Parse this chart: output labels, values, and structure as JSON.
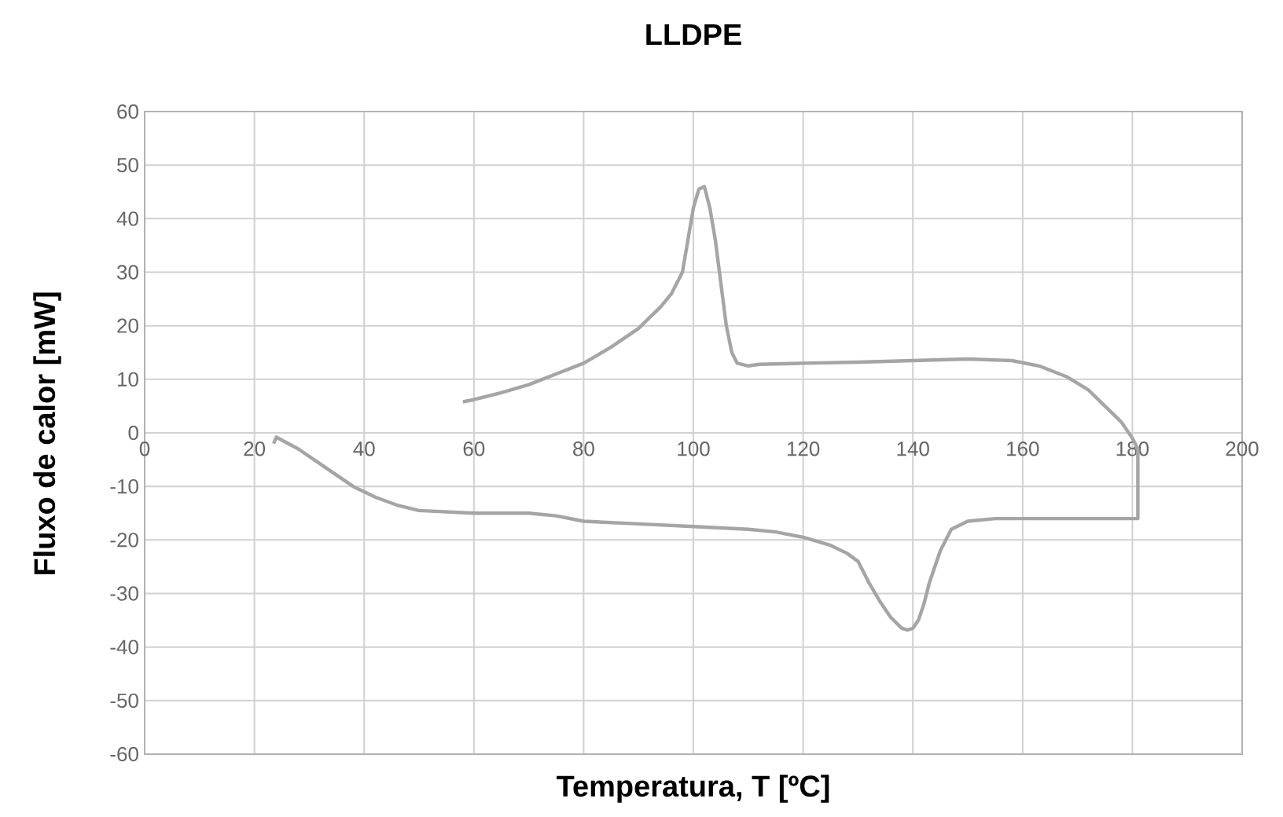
{
  "chart_data": {
    "type": "line",
    "title": "LLDPE",
    "xlabel": "Temperatura, T [ºC]",
    "ylabel": "Fluxo de calor [mW]",
    "xlim": [
      0,
      200
    ],
    "ylim": [
      -60,
      60
    ],
    "xticks": [
      0,
      20,
      40,
      60,
      80,
      100,
      120,
      140,
      160,
      180,
      200
    ],
    "yticks": [
      -60,
      -50,
      -40,
      -30,
      -20,
      -10,
      0,
      10,
      20,
      30,
      40,
      50,
      60
    ],
    "grid": true,
    "marker": "none",
    "line_style": "solid",
    "series": [
      {
        "color": "#a5a5a5",
        "x": [
          23.5,
          24,
          28,
          33,
          38,
          42,
          46,
          50,
          60,
          70,
          75,
          80,
          90,
          100,
          110,
          115,
          120,
          125,
          128,
          130,
          132,
          134,
          136,
          138,
          139,
          140,
          141,
          142,
          143,
          145,
          147,
          150,
          155,
          160,
          170,
          181,
          181,
          180,
          178,
          175,
          172,
          168,
          163,
          158,
          150,
          140,
          130,
          120,
          112,
          110,
          108,
          107,
          106,
          105,
          104,
          103,
          102,
          101,
          100,
          99,
          98,
          96,
          94,
          92,
          90,
          85,
          80,
          75,
          70,
          65,
          60,
          58
        ],
        "values": [
          -2,
          -0.8,
          -3,
          -6.5,
          -10,
          -12,
          -13.5,
          -14.5,
          -15,
          -15,
          -15.5,
          -16.5,
          -17,
          -17.5,
          -18,
          -18.5,
          -19.5,
          -21,
          -22.5,
          -24,
          -28,
          -31.5,
          -34.5,
          -36.5,
          -36.8,
          -36.5,
          -35,
          -32,
          -28,
          -22,
          -18,
          -16.5,
          -16,
          -16,
          -16,
          -16,
          -3,
          -1,
          2,
          5,
          8,
          10.5,
          12.5,
          13.5,
          13.8,
          13.5,
          13.2,
          13,
          12.8,
          12.5,
          13,
          15,
          20,
          28,
          36,
          42,
          46,
          45.5,
          42,
          36,
          30,
          26,
          23.5,
          21.5,
          19.5,
          16,
          13,
          11,
          9,
          7.5,
          6.2,
          5.8
        ]
      }
    ]
  }
}
